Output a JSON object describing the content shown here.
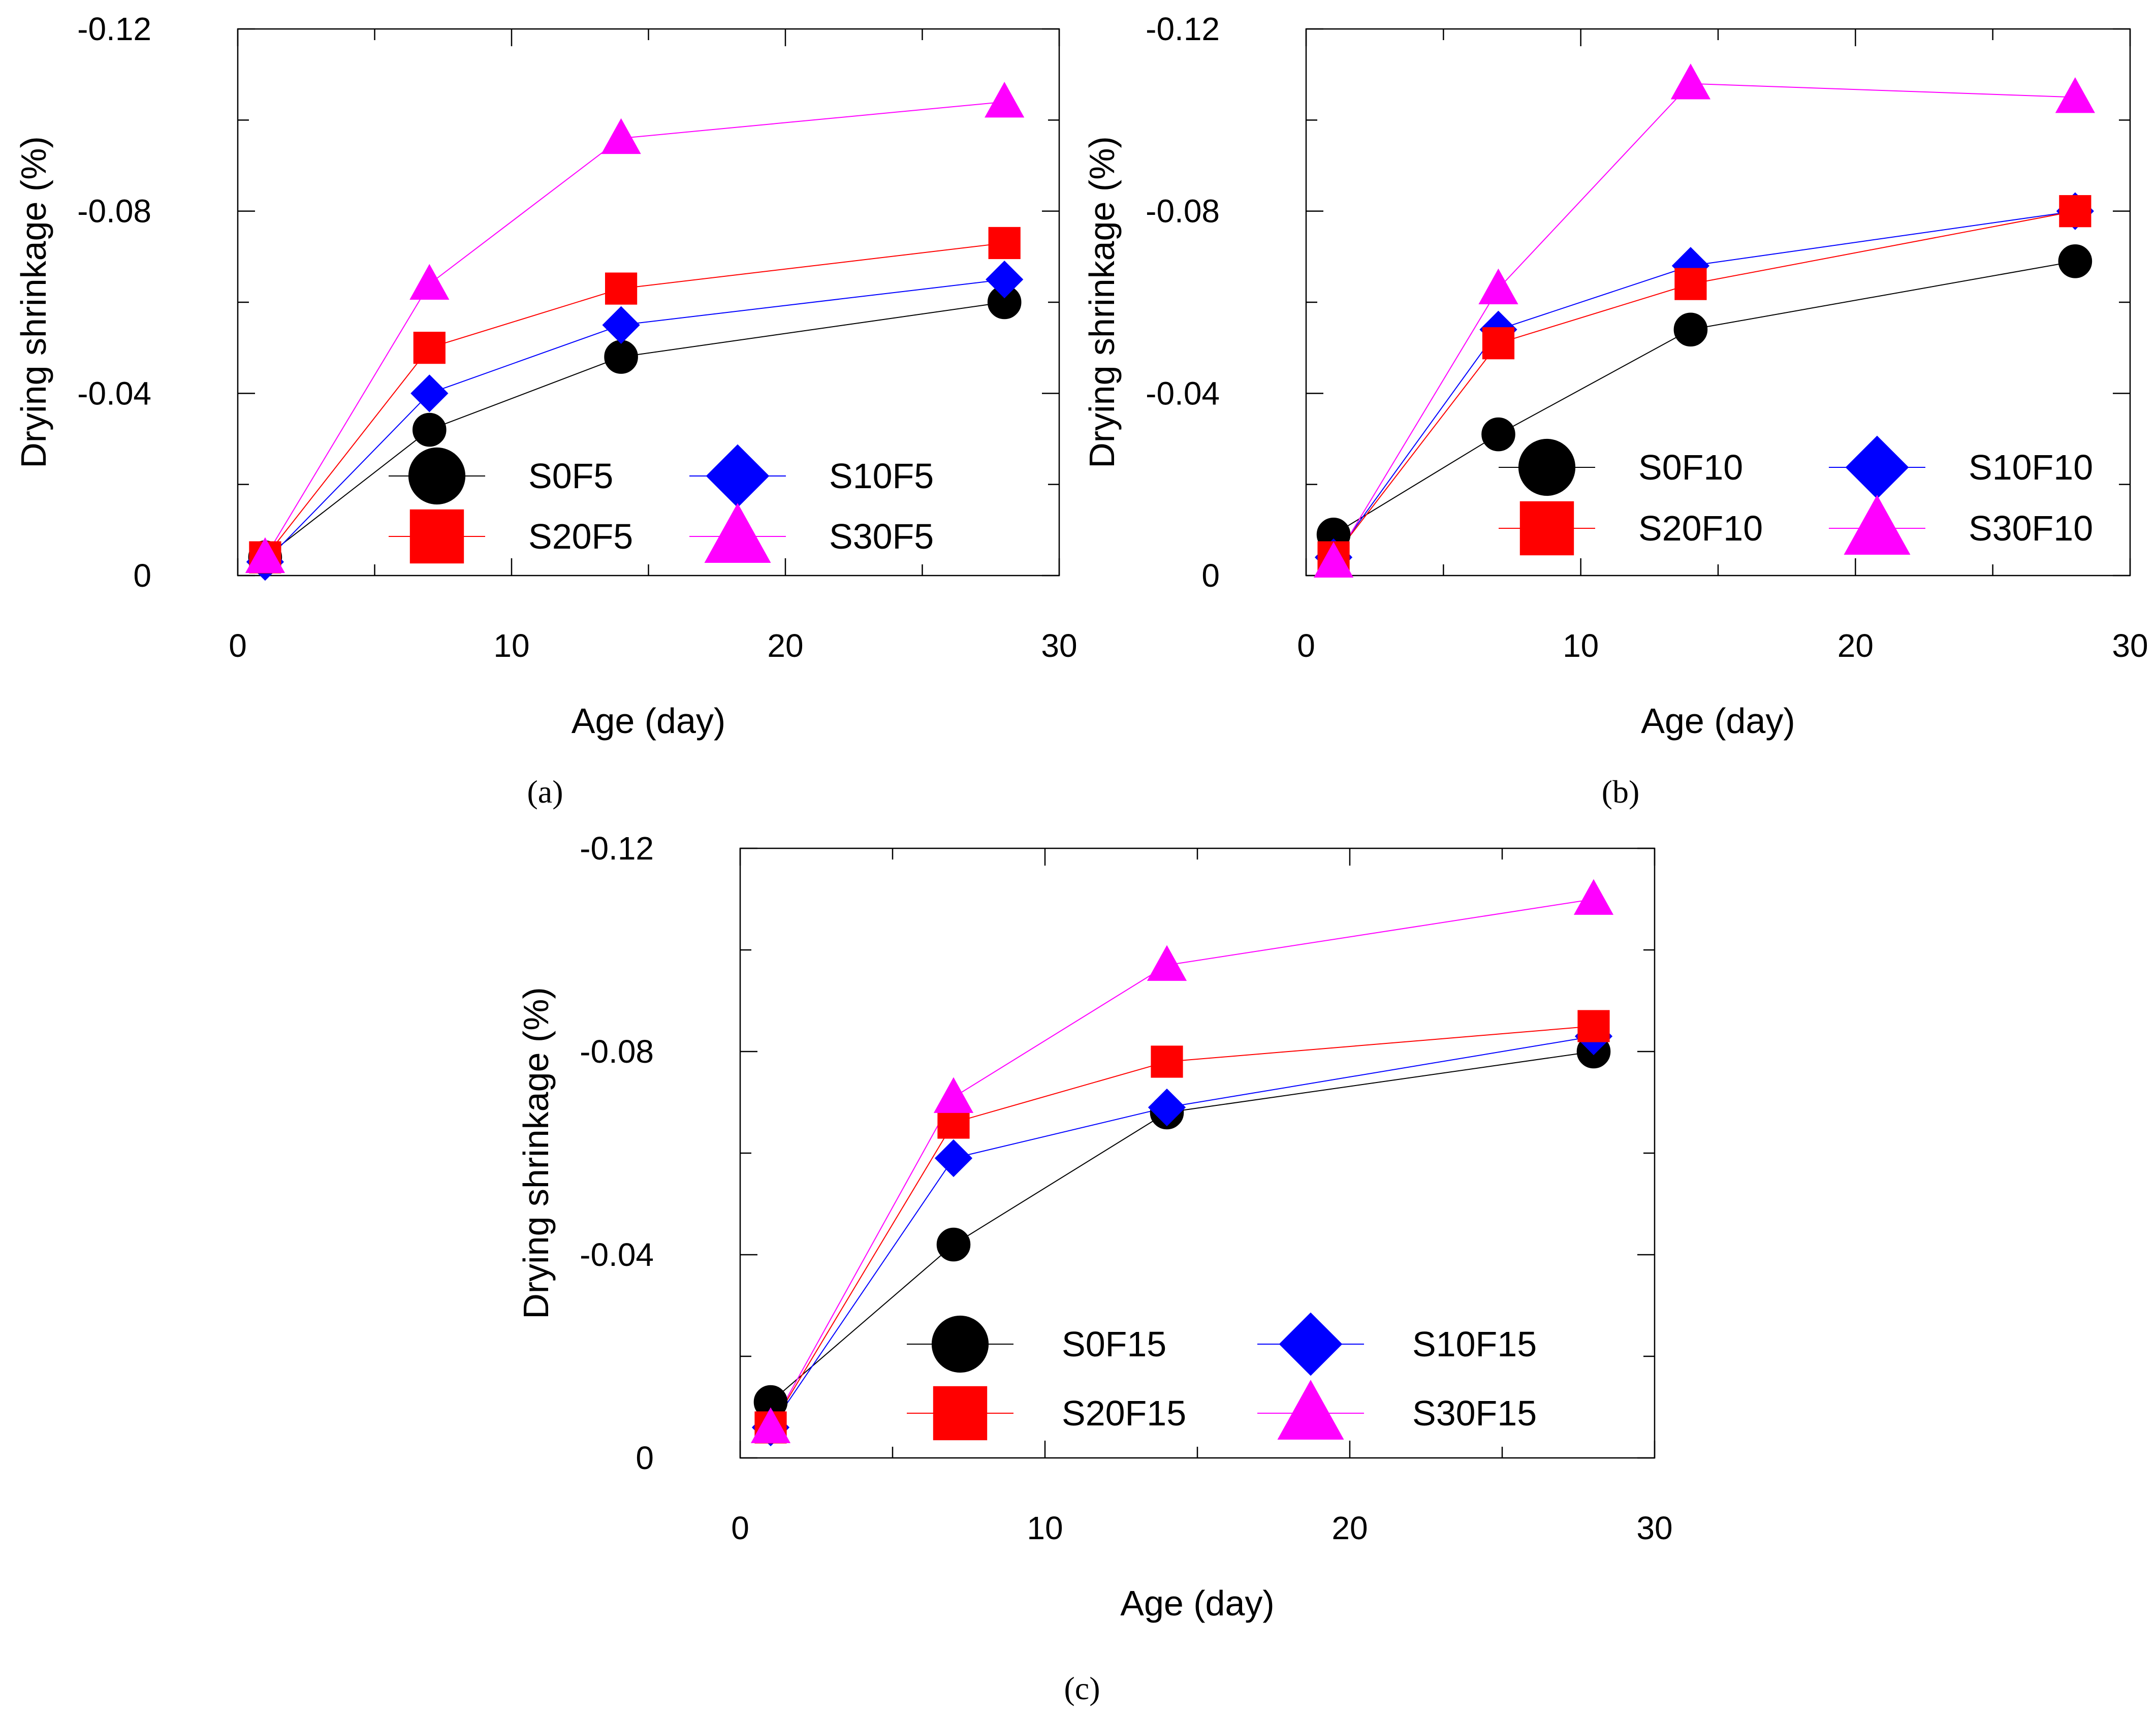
{
  "chart_data": [
    {
      "type": "line",
      "panel": "(a)",
      "xlabel": "Age (day)",
      "ylabel": "Drying shrinkage (%)",
      "xlim": [
        0,
        30
      ],
      "ylim": [
        0,
        -0.12
      ],
      "x_ticks": [
        "0",
        "10",
        "20",
        "30"
      ],
      "y_ticks": [
        "0",
        "-0.04",
        "-0.08",
        "-0.12"
      ],
      "grid": false,
      "legend_position": "lower-right",
      "x": [
        1,
        7,
        14,
        28
      ],
      "series": [
        {
          "name": "S0F5",
          "marker": "circle",
          "color": "#000000",
          "values": [
            -0.004,
            -0.032,
            -0.048,
            -0.06
          ]
        },
        {
          "name": "S10F5",
          "marker": "diamond",
          "color": "#0000ff",
          "values": [
            -0.003,
            -0.04,
            -0.055,
            -0.065
          ]
        },
        {
          "name": "S20F5",
          "marker": "square",
          "color": "#ff0000",
          "values": [
            -0.004,
            -0.05,
            -0.063,
            -0.073
          ]
        },
        {
          "name": "S30F5",
          "marker": "triangle",
          "color": "#ff00ff",
          "values": [
            -0.004,
            -0.064,
            -0.096,
            -0.104
          ]
        }
      ]
    },
    {
      "type": "line",
      "panel": "(b)",
      "xlabel": "Age (day)",
      "ylabel": "Drying shrinkage (%)",
      "xlim": [
        0,
        30
      ],
      "ylim": [
        0,
        -0.12
      ],
      "x_ticks": [
        "0",
        "10",
        "20",
        "30"
      ],
      "y_ticks": [
        "0",
        "-0.04",
        "-0.08",
        "-0.12"
      ],
      "grid": false,
      "legend_position": "lower-right",
      "x": [
        1,
        7,
        14,
        28
      ],
      "series": [
        {
          "name": "S0F10",
          "marker": "circle",
          "color": "#000000",
          "values": [
            -0.009,
            -0.031,
            -0.054,
            -0.069
          ]
        },
        {
          "name": "S10F10",
          "marker": "diamond",
          "color": "#0000ff",
          "values": [
            -0.004,
            -0.054,
            -0.068,
            -0.08
          ]
        },
        {
          "name": "S20F10",
          "marker": "square",
          "color": "#ff0000",
          "values": [
            -0.004,
            -0.051,
            -0.064,
            -0.08
          ]
        },
        {
          "name": "S30F10",
          "marker": "triangle",
          "color": "#ff00ff",
          "values": [
            -0.003,
            -0.063,
            -0.108,
            -0.105
          ]
        }
      ]
    },
    {
      "type": "line",
      "panel": "(c)",
      "xlabel": "Age (day)",
      "ylabel": "Drying shrinkage (%)",
      "xlim": [
        0,
        30
      ],
      "ylim": [
        0,
        -0.12
      ],
      "x_ticks": [
        "0",
        "10",
        "20",
        "30"
      ],
      "y_ticks": [
        "0",
        "-0.04",
        "-0.08",
        "-0.12"
      ],
      "grid": false,
      "legend_position": "lower-right",
      "x": [
        1,
        7,
        14,
        28
      ],
      "series": [
        {
          "name": "S0F15",
          "marker": "circle",
          "color": "#000000",
          "values": [
            -0.011,
            -0.042,
            -0.068,
            -0.08
          ]
        },
        {
          "name": "S10F15",
          "marker": "diamond",
          "color": "#0000ff",
          "values": [
            -0.006,
            -0.059,
            -0.069,
            -0.083
          ]
        },
        {
          "name": "S20F15",
          "marker": "square",
          "color": "#ff0000",
          "values": [
            -0.006,
            -0.066,
            -0.078,
            -0.085
          ]
        },
        {
          "name": "S30F15",
          "marker": "triangle",
          "color": "#ff00ff",
          "values": [
            -0.006,
            -0.071,
            -0.097,
            -0.11
          ]
        }
      ]
    }
  ]
}
